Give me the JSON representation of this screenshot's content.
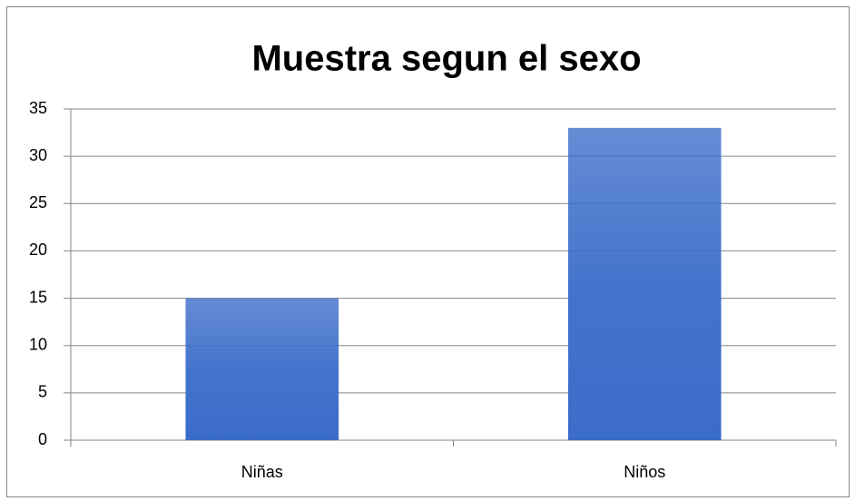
{
  "chart_data": {
    "type": "bar",
    "title": "Muestra segun el sexo",
    "categories": [
      "Niñas",
      "Niños"
    ],
    "values": [
      15,
      33
    ],
    "color": "#3a6cc9",
    "ylim": [
      0,
      35
    ],
    "yticks": [
      0,
      5,
      10,
      15,
      20,
      25,
      30,
      35
    ],
    "grid": true
  }
}
